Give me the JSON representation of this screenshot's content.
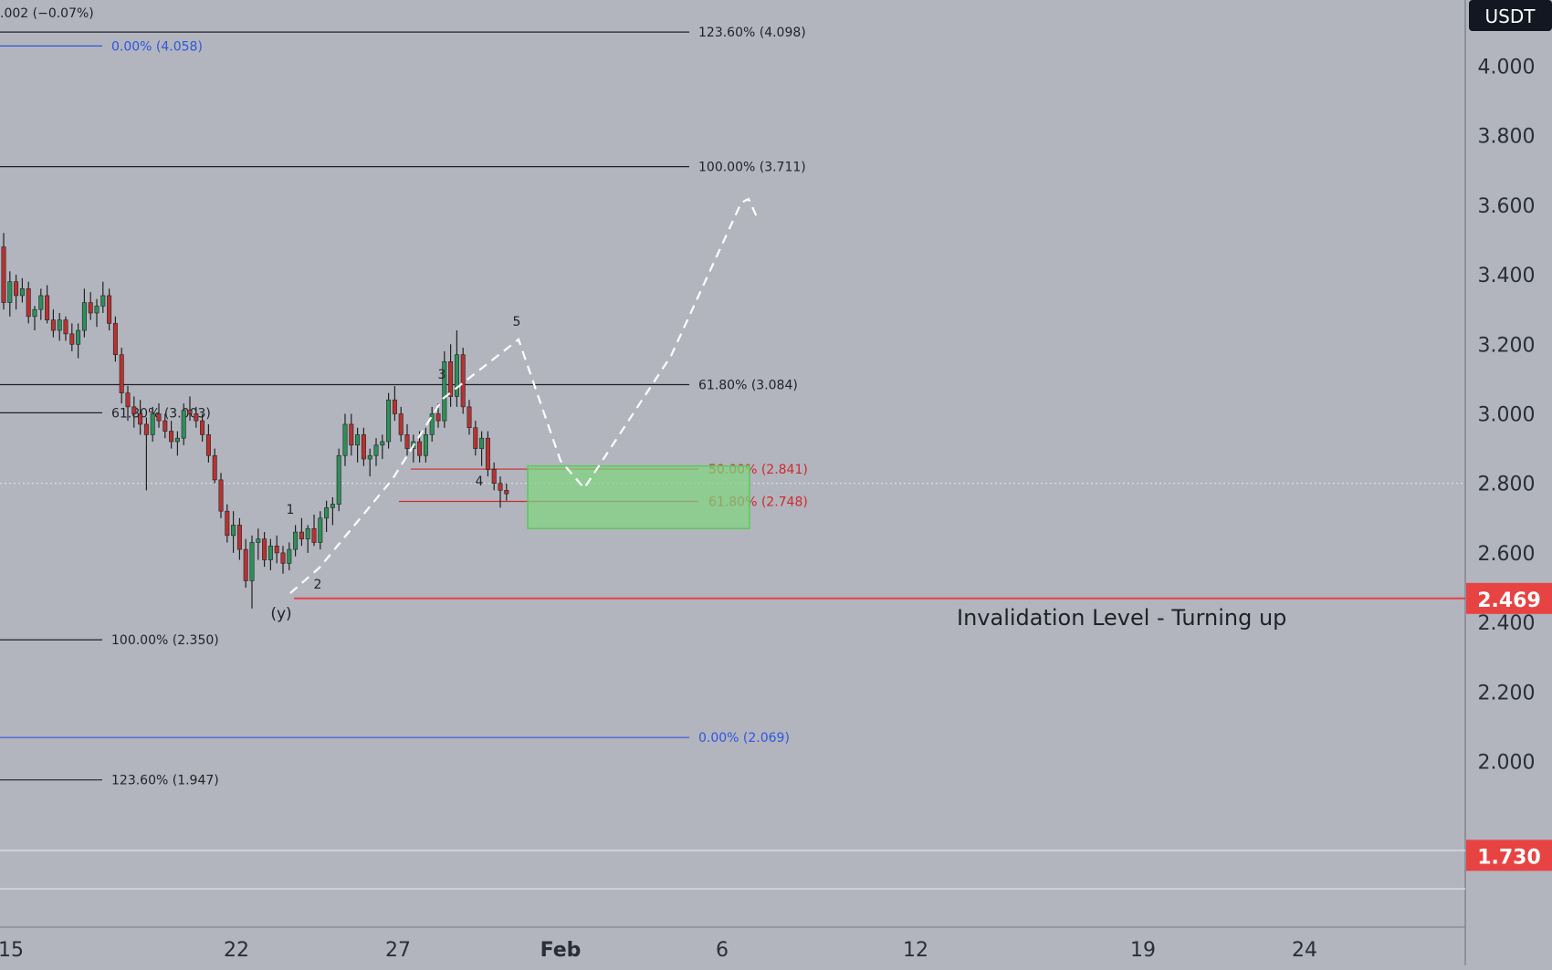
{
  "chart_data": {
    "type": "candlestick",
    "currency": "USDT",
    "top_left_change": ".002 (−0.07%)",
    "y_axis": {
      "min": 1.45,
      "max": 4.2,
      "ticks": [
        "4.000",
        "3.800",
        "3.600",
        "3.400",
        "3.200",
        "3.000",
        "2.800",
        "2.600",
        "2.400",
        "2.200",
        "2.000"
      ]
    },
    "x_axis": {
      "ticks": [
        "15",
        "22",
        "27",
        "Feb",
        "6",
        "12",
        "19",
        "24"
      ]
    },
    "price_tags": [
      {
        "label": "2.469",
        "value": 2.469,
        "color": "#e84343"
      },
      {
        "label": "1.730",
        "value": 1.73,
        "color": "#e84343"
      }
    ],
    "fib_levels": [
      {
        "label": "123.60% (4.098)",
        "value": 4.098,
        "color": "#1e2228",
        "set": "A"
      },
      {
        "label": "100.00% (3.711)",
        "value": 3.711,
        "color": "#1e2228",
        "set": "A"
      },
      {
        "label": "61.80% (3.084)",
        "value": 3.084,
        "color": "#1e2228",
        "set": "A"
      },
      {
        "label": "0.00% (2.069)",
        "value": 2.069,
        "color": "#2f56e0",
        "set": "A"
      },
      {
        "label": "0.00% (4.058)",
        "value": 4.058,
        "color": "#2f56e0",
        "set": "B"
      },
      {
        "label": "61.80% (3.003)",
        "value": 3.003,
        "color": "#1e2228",
        "set": "B"
      },
      {
        "label": "100.00% (2.350)",
        "value": 2.35,
        "color": "#1e2228",
        "set": "B"
      },
      {
        "label": "123.60% (1.947)",
        "value": 1.947,
        "color": "#1e2228",
        "set": "B"
      },
      {
        "label": "50.00% (2.841)",
        "value": 2.841,
        "color": "#d02a2a",
        "set": "C"
      },
      {
        "label": "61.80% (2.748)",
        "value": 2.748,
        "color": "#d02a2a",
        "set": "C"
      }
    ],
    "invalidation": {
      "label": "Invalidation Level - Turning up",
      "value": 2.469,
      "color": "#e84343"
    },
    "target_zone": {
      "from_value": 2.85,
      "to_value": 2.67,
      "color": "#7fd67f"
    },
    "current_price_value": 2.8,
    "wave_labels": [
      "1",
      "2",
      "3",
      "4",
      "5",
      "(y)"
    ],
    "candles": [
      [
        3.48,
        3.52,
        3.3,
        3.32
      ],
      [
        3.32,
        3.41,
        3.28,
        3.38
      ],
      [
        3.38,
        3.4,
        3.3,
        3.34
      ],
      [
        3.34,
        3.39,
        3.32,
        3.36
      ],
      [
        3.36,
        3.38,
        3.26,
        3.28
      ],
      [
        3.28,
        3.31,
        3.24,
        3.3
      ],
      [
        3.3,
        3.36,
        3.27,
        3.34
      ],
      [
        3.34,
        3.37,
        3.26,
        3.27
      ],
      [
        3.27,
        3.3,
        3.22,
        3.24
      ],
      [
        3.24,
        3.29,
        3.21,
        3.27
      ],
      [
        3.27,
        3.28,
        3.21,
        3.23
      ],
      [
        3.23,
        3.26,
        3.18,
        3.2
      ],
      [
        3.2,
        3.26,
        3.16,
        3.24
      ],
      [
        3.24,
        3.36,
        3.22,
        3.32
      ],
      [
        3.32,
        3.35,
        3.27,
        3.29
      ],
      [
        3.29,
        3.33,
        3.25,
        3.31
      ],
      [
        3.31,
        3.38,
        3.29,
        3.34
      ],
      [
        3.34,
        3.36,
        3.24,
        3.26
      ],
      [
        3.26,
        3.28,
        3.15,
        3.17
      ],
      [
        3.17,
        3.19,
        3.03,
        3.06
      ],
      [
        3.06,
        3.08,
        2.98,
        3.02
      ],
      [
        3.02,
        3.05,
        2.96,
        3.0
      ],
      [
        3.0,
        3.04,
        2.94,
        2.97
      ],
      [
        2.97,
        2.99,
        2.78,
        2.94
      ],
      [
        2.94,
        3.02,
        2.92,
        3.0
      ],
      [
        3.0,
        3.03,
        2.96,
        2.98
      ],
      [
        2.98,
        3.0,
        2.93,
        2.95
      ],
      [
        2.95,
        2.98,
        2.9,
        2.92
      ],
      [
        2.92,
        2.95,
        2.88,
        2.93
      ],
      [
        2.93,
        3.03,
        2.91,
        3.01
      ],
      [
        3.01,
        3.05,
        2.98,
        3.0
      ],
      [
        3.0,
        3.02,
        2.96,
        2.98
      ],
      [
        2.98,
        3.0,
        2.92,
        2.94
      ],
      [
        2.94,
        2.97,
        2.86,
        2.88
      ],
      [
        2.88,
        2.9,
        2.8,
        2.81
      ],
      [
        2.81,
        2.83,
        2.7,
        2.72
      ],
      [
        2.72,
        2.74,
        2.63,
        2.65
      ],
      [
        2.65,
        2.72,
        2.6,
        2.68
      ],
      [
        2.68,
        2.7,
        2.58,
        2.61
      ],
      [
        2.61,
        2.64,
        2.5,
        2.52
      ],
      [
        2.52,
        2.65,
        2.44,
        2.63
      ],
      [
        2.63,
        2.67,
        2.58,
        2.64
      ],
      [
        2.64,
        2.66,
        2.56,
        2.58
      ],
      [
        2.58,
        2.64,
        2.55,
        2.62
      ],
      [
        2.62,
        2.65,
        2.57,
        2.6
      ],
      [
        2.6,
        2.62,
        2.54,
        2.57
      ],
      [
        2.57,
        2.63,
        2.55,
        2.61
      ],
      [
        2.61,
        2.68,
        2.59,
        2.66
      ],
      [
        2.66,
        2.7,
        2.62,
        2.64
      ],
      [
        2.64,
        2.68,
        2.6,
        2.67
      ],
      [
        2.67,
        2.71,
        2.62,
        2.63
      ],
      [
        2.63,
        2.72,
        2.61,
        2.7
      ],
      [
        2.7,
        2.75,
        2.66,
        2.73
      ],
      [
        2.73,
        2.76,
        2.68,
        2.74
      ],
      [
        2.74,
        2.9,
        2.72,
        2.88
      ],
      [
        2.88,
        3.0,
        2.85,
        2.97
      ],
      [
        2.97,
        3.0,
        2.88,
        2.91
      ],
      [
        2.91,
        2.96,
        2.86,
        2.94
      ],
      [
        2.94,
        2.96,
        2.85,
        2.87
      ],
      [
        2.87,
        2.9,
        2.82,
        2.88
      ],
      [
        2.88,
        2.93,
        2.85,
        2.91
      ],
      [
        2.91,
        2.94,
        2.87,
        2.92
      ],
      [
        2.92,
        3.06,
        2.9,
        3.04
      ],
      [
        3.04,
        3.08,
        2.98,
        3.0
      ],
      [
        3.0,
        3.02,
        2.92,
        2.94
      ],
      [
        2.94,
        2.97,
        2.88,
        2.9
      ],
      [
        2.9,
        2.94,
        2.86,
        2.92
      ],
      [
        2.92,
        2.95,
        2.86,
        2.88
      ],
      [
        2.88,
        2.96,
        2.86,
        2.94
      ],
      [
        2.94,
        3.02,
        2.92,
        3.0
      ],
      [
        3.0,
        3.03,
        2.96,
        2.98
      ],
      [
        2.98,
        3.18,
        2.96,
        3.15
      ],
      [
        3.15,
        3.2,
        3.02,
        3.05
      ],
      [
        3.05,
        3.24,
        3.02,
        3.17
      ],
      [
        3.17,
        3.19,
        3.0,
        3.02
      ],
      [
        3.02,
        3.04,
        2.94,
        2.96
      ],
      [
        2.96,
        2.98,
        2.88,
        2.9
      ],
      [
        2.9,
        2.95,
        2.85,
        2.93
      ],
      [
        2.93,
        2.95,
        2.82,
        2.84
      ],
      [
        2.84,
        2.86,
        2.78,
        2.8
      ],
      [
        2.8,
        2.82,
        2.73,
        2.78
      ],
      [
        2.78,
        2.8,
        2.75,
        2.77
      ]
    ]
  }
}
